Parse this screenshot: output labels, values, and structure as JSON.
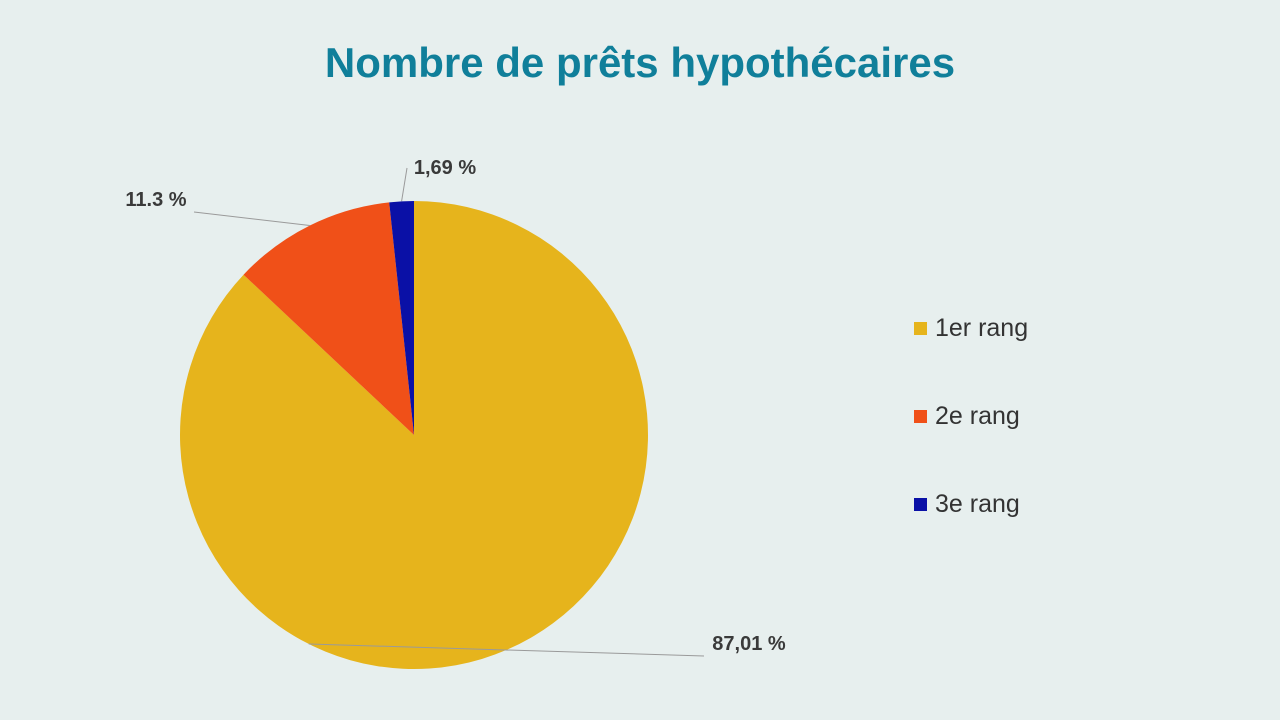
{
  "colors": {
    "background": "#e7efee",
    "title": "#107f9a",
    "label": "#3a3a3a",
    "leader": "#9a9a9a"
  },
  "chart_data": {
    "type": "pie",
    "title": "Nombre de prêts hypothécaires",
    "categories": [
      "1er rang",
      "2e rang",
      "3e rang"
    ],
    "values": [
      87.01,
      11.3,
      1.69
    ],
    "data_labels": [
      "87,01 %",
      "11.3 %",
      "1,69 %"
    ],
    "colors": [
      "#e6b41c",
      "#f05018",
      "#0a10a6"
    ],
    "start_angle_deg": 0,
    "direction": "clockwise",
    "legend": "right"
  }
}
